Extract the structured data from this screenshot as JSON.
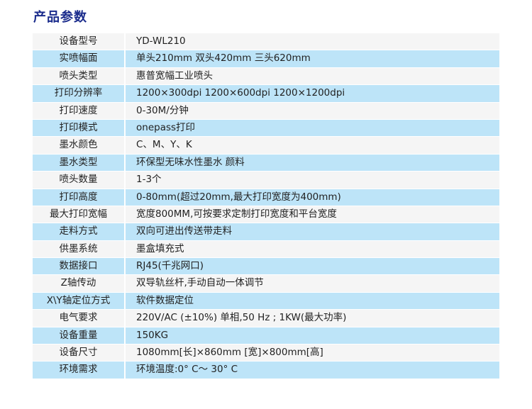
{
  "title": "产品参数",
  "colors": {
    "title": "#1b2c8c",
    "row_gray": "#f5f5f5",
    "row_blue": "#bde4f8"
  },
  "rows": [
    {
      "label": "设备型号",
      "value": "YD-WL210"
    },
    {
      "label": "实喷幅面",
      "value": "单头210mm   双头420mm   三头620mm"
    },
    {
      "label": "喷头类型",
      "value": "惠普宽幅工业喷头"
    },
    {
      "label": "打印分辨率",
      "value": "1200×300dpi  1200×600dpi  1200×1200dpi"
    },
    {
      "label": "打印速度",
      "value": "0-30M/分钟"
    },
    {
      "label": "打印模式",
      "value": "onepass打印"
    },
    {
      "label": "墨水颜色",
      "value": "C、M、Y、K"
    },
    {
      "label": "墨水类型",
      "value": "环保型无味水性墨水 颜料"
    },
    {
      "label": "喷头数量",
      "value": "1-3个"
    },
    {
      "label": "打印高度",
      "value": "0-80mm(超过20mm,最大打印宽度为400mm)"
    },
    {
      "label": "最大打印宽幅",
      "value": "宽度800MM,可按要求定制打印宽度和平台宽度"
    },
    {
      "label": "走料方式",
      "value": "双向可进出传送带走料"
    },
    {
      "label": "供墨系统",
      "value": "墨盒填充式"
    },
    {
      "label": "数据接口",
      "value": "RJ45(千兆网口)"
    },
    {
      "label": "Z轴传动",
      "value": "双导轨丝杆,手动自动一体调节"
    },
    {
      "label": "X\\Y轴定位方式",
      "value": "软件数据定位"
    },
    {
      "label": "电气要求",
      "value": "220V/AC (±10%) 单相,50  Hz ; 1KW(最大功率)"
    },
    {
      "label": "设备重量",
      "value": "150KG"
    },
    {
      "label": "设备尺寸",
      "value": "1080mm[长]×860mm [宽]×800mm[高]"
    },
    {
      "label": "环境需求",
      "value": "环境温度:0° C～ 30° C"
    }
  ]
}
